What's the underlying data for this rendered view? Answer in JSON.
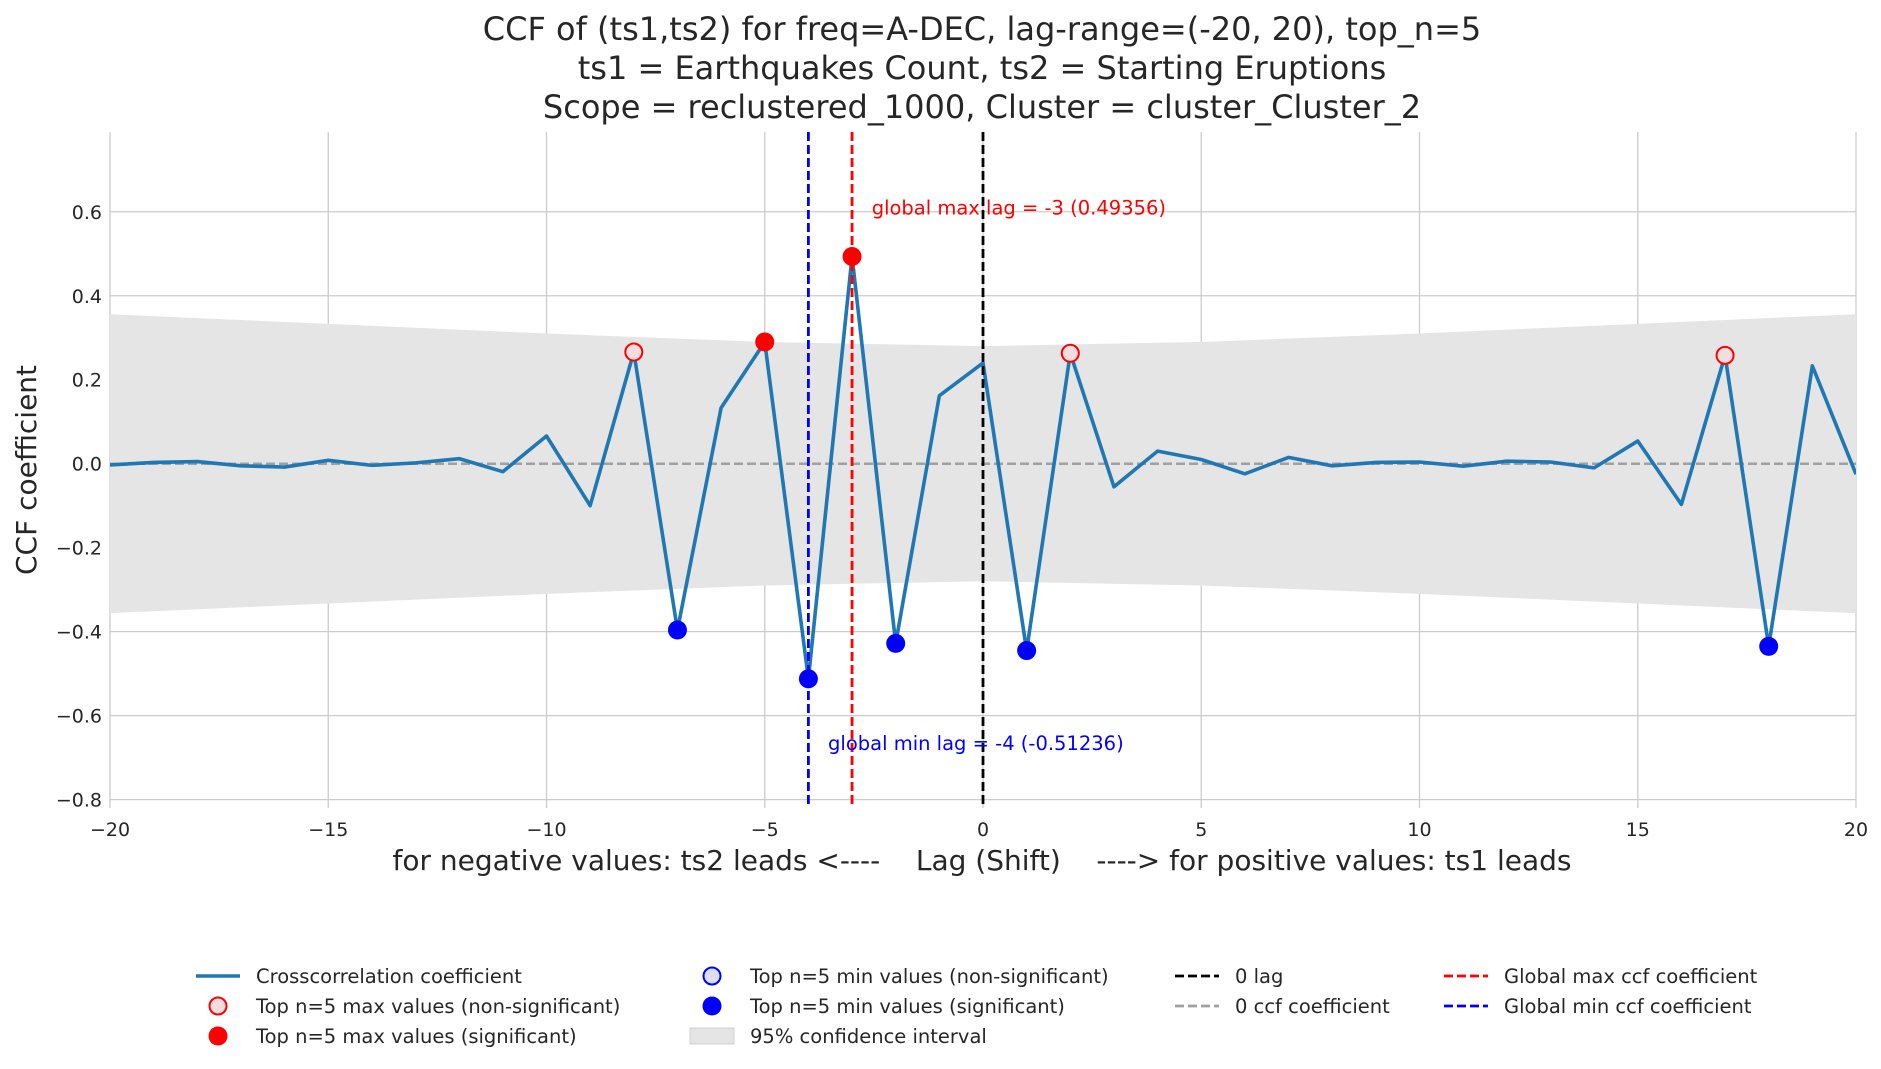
{
  "chart_data": {
    "type": "line",
    "title": [
      "CCF of (ts1,ts2) for freq=A-DEC, lag-range=(-20, 20), top_n=5",
      "ts1 = Earthquakes Count, ts2 = Starting Eruptions",
      "Scope = reclustered_1000, Cluster = cluster_Cluster_2"
    ],
    "xlabel": "for negative values: ts2 leads <----    Lag (Shift)    ----> for positive values: ts1 leads",
    "ylabel": "CCF coefficient",
    "xlim": [
      -20,
      20
    ],
    "ylim": [
      -0.82,
      0.79
    ],
    "x_ticks": [
      -20,
      -15,
      -10,
      -5,
      0,
      5,
      10,
      15,
      20
    ],
    "x_tick_labels": [
      "−20",
      "−15",
      "−10",
      "−5",
      "0",
      "5",
      "10",
      "15",
      "20"
    ],
    "y_ticks": [
      -0.8,
      -0.6,
      -0.4,
      -0.2,
      0.0,
      0.2,
      0.4,
      0.6
    ],
    "y_tick_labels": [
      "−0.8",
      "−0.6",
      "−0.4",
      "−0.2",
      "0.0",
      "0.2",
      "0.4",
      "0.6"
    ],
    "grid": true,
    "legend_placement": "bottom-center",
    "series": [
      {
        "name": "Crosscorrelation coefficient",
        "color": "#1f77b4",
        "x": [
          -20,
          -19,
          -18,
          -17,
          -16,
          -15,
          -14,
          -13,
          -12,
          -11,
          -10,
          -9,
          -8,
          -7,
          -6,
          -5,
          -4,
          -3,
          -2,
          -1,
          0,
          1,
          2,
          3,
          4,
          5,
          6,
          7,
          8,
          9,
          10,
          11,
          12,
          13,
          14,
          15,
          16,
          17,
          18,
          19,
          20
        ],
        "y": [
          -0.003,
          0.003,
          0.005,
          -0.005,
          -0.008,
          0.008,
          -0.004,
          0.002,
          0.012,
          -0.019,
          0.066,
          -0.1,
          0.266,
          -0.396,
          0.133,
          0.29,
          -0.51236,
          0.49356,
          -0.428,
          0.162,
          0.24,
          -0.445,
          0.263,
          -0.055,
          0.03,
          0.01,
          -0.024,
          0.015,
          -0.005,
          0.003,
          0.004,
          -0.006,
          0.006,
          0.004,
          -0.01,
          0.054,
          -0.097,
          0.258,
          -0.435,
          0.233,
          -0.025
        ]
      }
    ],
    "confidence_interval": {
      "name": "95% confidence interval",
      "color": "#e5e5e5",
      "x": [
        -20,
        -15,
        -10,
        -5,
        0,
        5,
        10,
        15,
        20
      ],
      "upper": [
        0.356,
        0.333,
        0.31,
        0.29,
        0.28,
        0.29,
        0.31,
        0.333,
        0.356
      ],
      "lower": [
        -0.356,
        -0.333,
        -0.31,
        -0.29,
        -0.28,
        -0.29,
        -0.31,
        -0.333,
        -0.356
      ]
    },
    "top_max_nonsignificant": {
      "name": "Top n=5 max values (non-significant)",
      "color": "#ff0000",
      "points": [
        [
          -8,
          0.266
        ],
        [
          2,
          0.263
        ],
        [
          17,
          0.258
        ]
      ]
    },
    "top_max_significant": {
      "name": "Top n=5 max values (significant)",
      "color": "#ff0000",
      "points": [
        [
          -5,
          0.29
        ],
        [
          -3,
          0.49356
        ]
      ]
    },
    "top_min_nonsignificant": {
      "name": "Top n=5 min values (non-significant)",
      "color": "#0000ff",
      "points": []
    },
    "top_min_significant": {
      "name": "Top n=5 min values (significant)",
      "color": "#0000ff",
      "points": [
        [
          -7,
          -0.396
        ],
        [
          -4,
          -0.51236
        ],
        [
          -2,
          -0.428
        ],
        [
          1,
          -0.445
        ],
        [
          18,
          -0.435
        ]
      ]
    },
    "zero_lag": {
      "name": "0 lag",
      "color": "#000000",
      "x": 0
    },
    "zero_ccf": {
      "name": "0 ccf coefficient",
      "color": "#a0a0a0",
      "y": 0
    },
    "global_max": {
      "name": "Global max ccf coefficient",
      "color": "#ff0000",
      "x": -3,
      "annotation": "global max lag = -3 (0.49356)",
      "annotation_at": [
        -2.55,
        0.61
      ]
    },
    "global_min": {
      "name": "Global min ccf coefficient",
      "color": "#0000ff",
      "x": -4,
      "annotation": "global min lag = -4 (-0.51236)",
      "annotation_at": [
        -3.55,
        -0.665
      ]
    },
    "legend": [
      {
        "label": "Crosscorrelation coefficient",
        "kind": "line",
        "color": "#1f77b4"
      },
      {
        "label": "Top n=5 max values (non-significant)",
        "kind": "open-circle",
        "color": "#ff0000"
      },
      {
        "label": "Top n=5 max values (significant)",
        "kind": "filled-circle",
        "color": "#ff0000"
      },
      {
        "label": "Top n=5 min values (non-significant)",
        "kind": "open-circle",
        "color": "#0000ff"
      },
      {
        "label": "Top n=5 min values (significant)",
        "kind": "filled-circle",
        "color": "#0000ff"
      },
      {
        "label": "95% confidence interval",
        "kind": "patch",
        "color": "#e5e5e5"
      },
      {
        "label": "0 lag",
        "kind": "dash",
        "color": "#000000"
      },
      {
        "label": "0 ccf coefficient",
        "kind": "dash",
        "color": "#a0a0a0"
      },
      {
        "label": "Global max ccf coefficient",
        "kind": "dash",
        "color": "#ff0000"
      },
      {
        "label": "Global min ccf coefficient",
        "kind": "dash",
        "color": "#0000ff"
      }
    ]
  }
}
